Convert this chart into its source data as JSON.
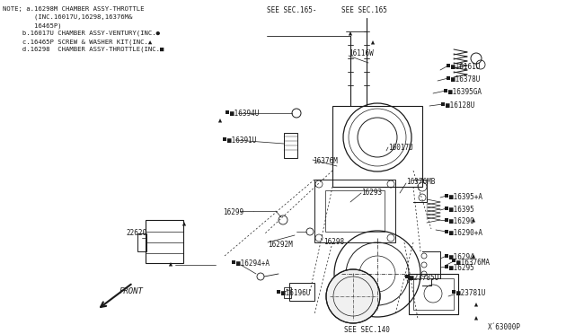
{
  "bg_color": "#ffffff",
  "line_color": "#1a1a1a",
  "fig_width": 6.4,
  "fig_height": 3.72,
  "dpi": 100,
  "note_lines": [
    "NOTE; a.16298M CHAMBER ASSY-THROTTLE",
    "        (INC.16017U,16298,16376M&",
    "        16465P)",
    "     b.16017U CHAMBER ASSY-VENTURY(INC.●",
    "     c.16465P SCREW & WASHER KIT(INC.▲",
    "     d.16298  CHAMBER ASSY-THROTTLE(INC.■"
  ],
  "diagram_id": "X´63000P"
}
